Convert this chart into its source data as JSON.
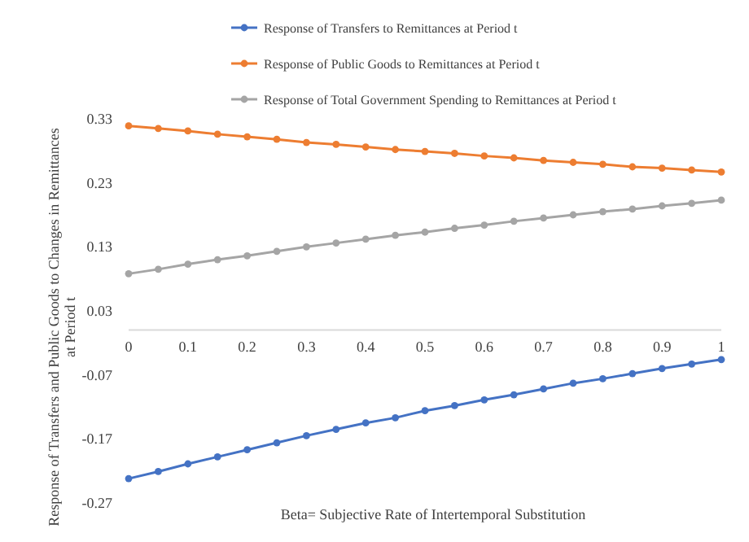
{
  "chart_data": {
    "type": "line",
    "xlabel": "Beta= Subjective Rate of Intertemporal Substitution",
    "ylabel": "Response of Transfers and Public Goods to Changes in Remittances at Period t",
    "x": [
      0,
      0.05,
      0.1,
      0.15,
      0.2,
      0.25,
      0.3,
      0.35,
      0.4,
      0.45,
      0.5,
      0.55,
      0.6,
      0.65,
      0.7,
      0.75,
      0.8,
      0.85,
      0.9,
      0.95,
      1
    ],
    "series": [
      {
        "name": "Response of Transfers to Remittances at Period t",
        "color": "#4472c4",
        "values": [
          -0.232,
          -0.221,
          -0.209,
          -0.198,
          -0.187,
          -0.176,
          -0.165,
          -0.155,
          -0.145,
          -0.137,
          -0.126,
          -0.118,
          -0.109,
          -0.101,
          -0.092,
          -0.083,
          -0.076,
          -0.068,
          -0.06,
          -0.053,
          -0.046
        ]
      },
      {
        "name": "Response of Public Goods to Remittances at Period t",
        "color": "#ed7d31",
        "values": [
          0.319,
          0.315,
          0.311,
          0.306,
          0.302,
          0.298,
          0.293,
          0.29,
          0.286,
          0.282,
          0.279,
          0.276,
          0.272,
          0.269,
          0.265,
          0.262,
          0.259,
          0.255,
          0.253,
          0.25,
          0.247
        ]
      },
      {
        "name": "Response of Total Government Spending to Remittances at Period t",
        "color": "#a5a5a5",
        "values": [
          0.088,
          0.095,
          0.103,
          0.11,
          0.116,
          0.123,
          0.13,
          0.136,
          0.142,
          0.148,
          0.153,
          0.159,
          0.164,
          0.17,
          0.175,
          0.18,
          0.185,
          0.189,
          0.194,
          0.198,
          0.203
        ]
      }
    ],
    "xlim": [
      0,
      1
    ],
    "xticks": [
      0,
      0.1,
      0.2,
      0.3,
      0.4,
      0.5,
      0.6,
      0.7,
      0.8,
      0.9,
      1
    ],
    "ylim": [
      -0.27,
      0.33
    ],
    "yticks": [
      -0.27,
      -0.17,
      -0.07,
      0.03,
      0.13,
      0.23,
      0.33
    ],
    "marker": "circle",
    "line_style": "solid",
    "grid": false,
    "legend": "top"
  }
}
